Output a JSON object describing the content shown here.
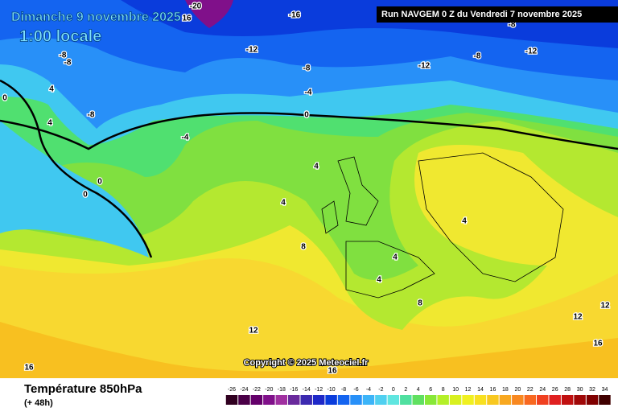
{
  "header": {
    "title": "Dimanche 9 novembre 2025",
    "time": "1:00 locale",
    "run": "Run NAVGEM 0 Z du Vendredi 7 novembre 2025"
  },
  "map": {
    "copyright": "Copyright © 2025 Meteociel.fr",
    "contour_labels": [
      "-20",
      "16",
      "-16",
      "-8",
      "-12",
      "-12",
      "-8",
      "-12",
      "-8",
      "-8",
      "-8",
      "-4",
      "0",
      "-8",
      "4",
      "4",
      "0",
      "0",
      "0",
      "-4",
      "4",
      "4",
      "8",
      "4",
      "4",
      "4",
      "8",
      "12",
      "12",
      "12",
      "16",
      "16",
      "16"
    ]
  },
  "footer": {
    "variable": "Température 850hPa",
    "lead": "(+ 48h)"
  },
  "legend": {
    "ticks": [
      -26,
      -24,
      -22,
      -20,
      -18,
      -16,
      -14,
      -12,
      -10,
      -8,
      -6,
      -4,
      -2,
      0,
      2,
      4,
      6,
      8,
      10,
      12,
      14,
      16,
      18,
      20,
      22,
      24,
      26,
      28,
      30,
      32,
      34
    ],
    "colors": [
      "#300020",
      "#4b0048",
      "#64006a",
      "#80108a",
      "#a030a0",
      "#6a2a9c",
      "#3c2ab0",
      "#1e28c8",
      "#0a3cdc",
      "#1464f0",
      "#2890f8",
      "#3cb4f8",
      "#50d0f0",
      "#60e6e0",
      "#50e0a0",
      "#60e060",
      "#88e838",
      "#b4f028",
      "#d8f020",
      "#f0f020",
      "#f8e020",
      "#f8c820",
      "#f8a820",
      "#f88820",
      "#f86820",
      "#f04020",
      "#e02020",
      "#c01010",
      "#a00808",
      "#800000",
      "#400000"
    ]
  }
}
